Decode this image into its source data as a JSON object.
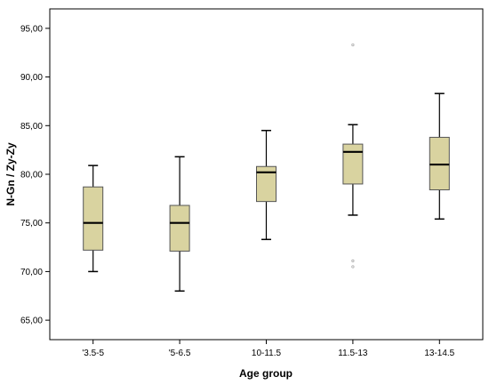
{
  "chart_data": {
    "type": "box",
    "xlabel": "Age group",
    "ylabel": "N-Gn / Zy-Zy",
    "ylim": [
      63,
      97
    ],
    "yticks": [
      65,
      70,
      75,
      80,
      85,
      90,
      95
    ],
    "ytick_labels": [
      "65,00",
      "70,00",
      "75,00",
      "80,00",
      "85,00",
      "90,00",
      "95,00"
    ],
    "grid": false,
    "legend": "none",
    "box_color": "#d9d3a0",
    "categories": [
      "'3.5-5",
      "'5-6.5",
      "10-11.5",
      "11.5-13",
      "13-14.5"
    ],
    "boxes": [
      {
        "min": 70.0,
        "q1": 72.2,
        "median": 75.0,
        "q3": 78.7,
        "max": 80.9,
        "outliers": []
      },
      {
        "min": 68.0,
        "q1": 72.1,
        "median": 75.0,
        "q3": 76.8,
        "max": 81.8,
        "outliers": []
      },
      {
        "min": 73.3,
        "q1": 77.2,
        "median": 80.2,
        "q3": 80.8,
        "max": 84.5,
        "outliers": []
      },
      {
        "min": 75.8,
        "q1": 79.0,
        "median": 82.3,
        "q3": 83.1,
        "max": 85.1,
        "outliers": [
          93.3,
          71.1,
          70.5
        ]
      },
      {
        "min": 75.4,
        "q1": 78.4,
        "median": 81.0,
        "q3": 83.8,
        "max": 88.3,
        "outliers": []
      }
    ]
  }
}
